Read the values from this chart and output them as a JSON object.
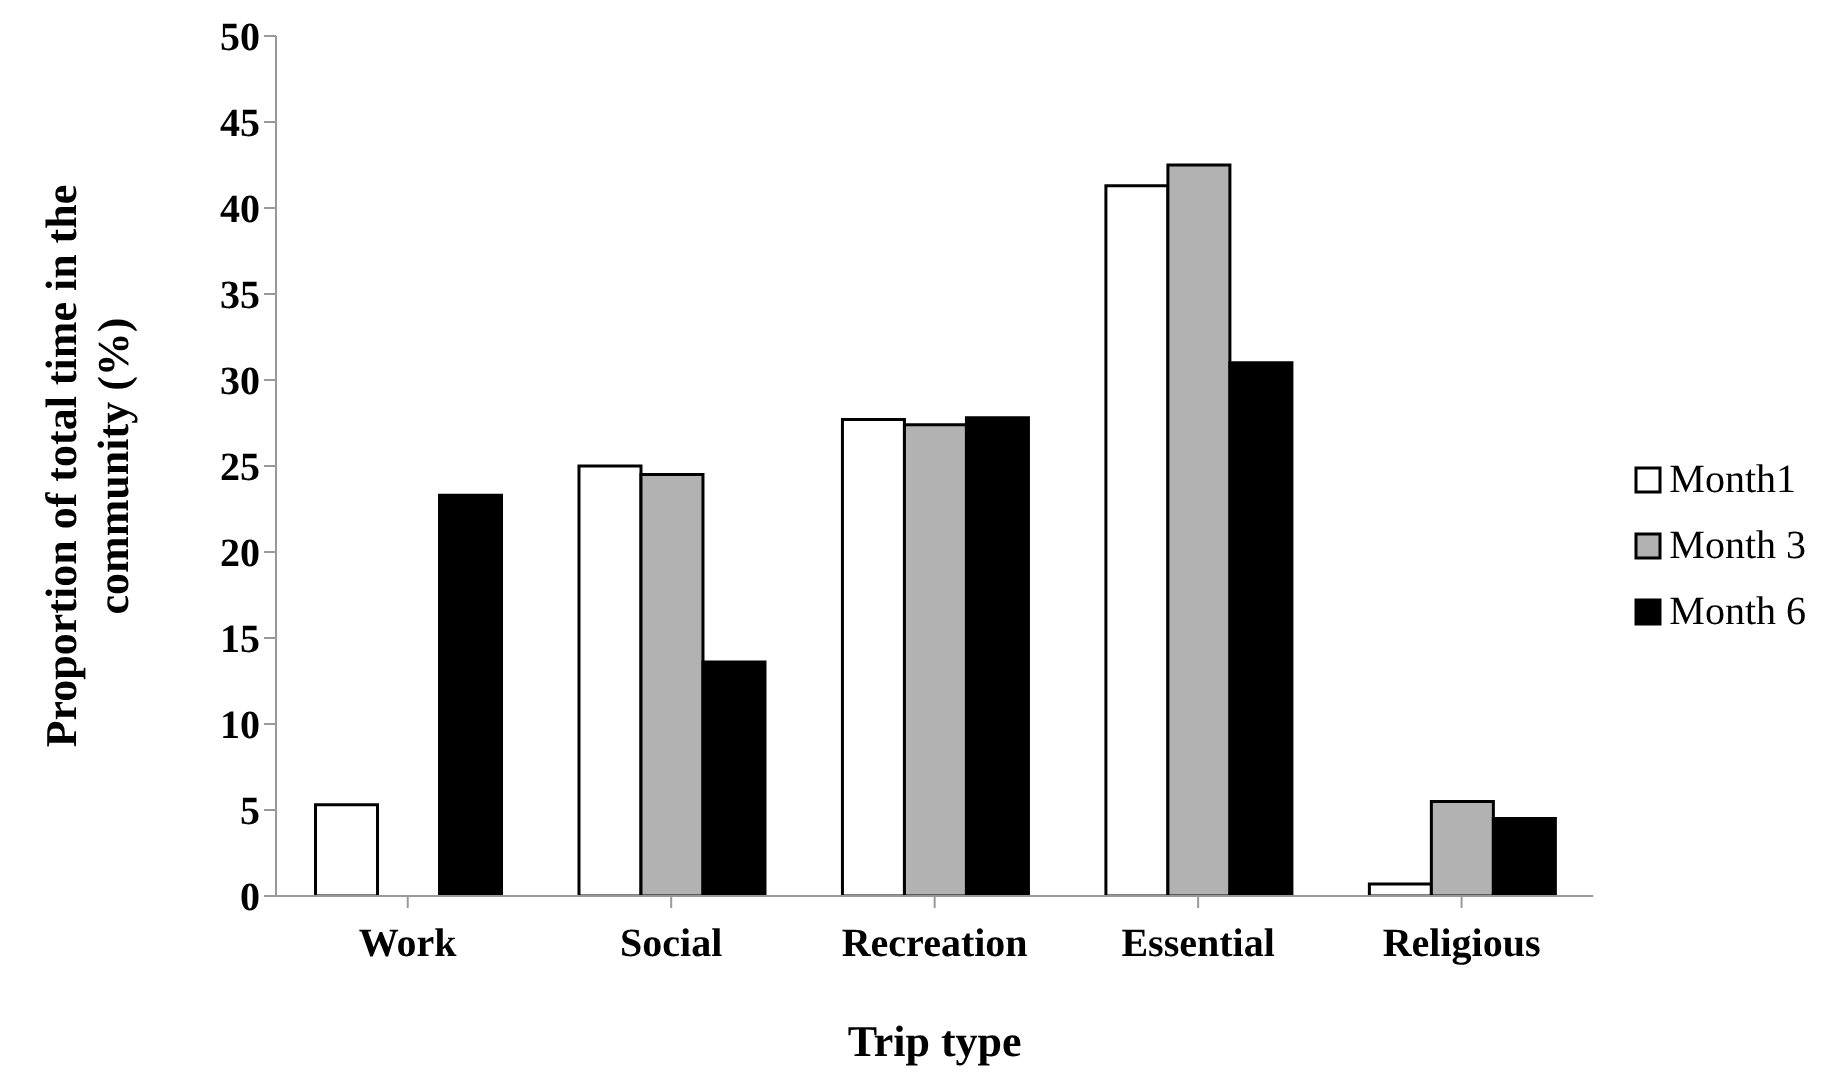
{
  "chart_data": {
    "type": "bar",
    "xlabel": "Trip type",
    "ylabel": "Proportion of total time in the community (%)",
    "categories": [
      "Work",
      "Social",
      "Recreation",
      "Essential",
      "Religious"
    ],
    "series": [
      {
        "name": "Month1",
        "color": "#ffffff",
        "values": [
          5.3,
          25.0,
          27.7,
          41.3,
          0.7
        ]
      },
      {
        "name": "Month 3",
        "color": "#b2b2b2",
        "values": [
          0,
          24.5,
          27.4,
          42.5,
          5.5
        ]
      },
      {
        "name": "Month 6",
        "color": "#000000",
        "values": [
          23.3,
          13.6,
          27.8,
          31.0,
          4.5
        ]
      }
    ],
    "ylim": [
      0,
      50
    ],
    "yticks": [
      0,
      5,
      10,
      15,
      20,
      25,
      30,
      35,
      40,
      45,
      50
    ],
    "grid": false,
    "legend": "right"
  }
}
